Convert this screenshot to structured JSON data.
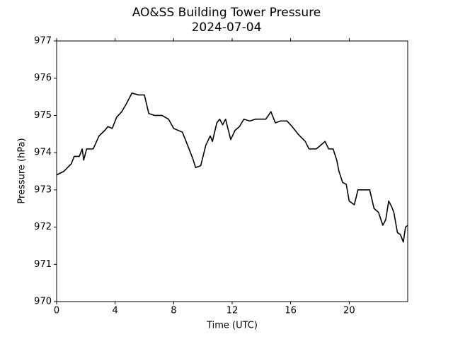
{
  "chart_data": {
    "type": "line",
    "title": "AO&SS Building Tower Pressure",
    "subtitle": "2024-07-04",
    "x_label": "Time (UTC)",
    "y_label": "Pressure (hPa)",
    "xlim": [
      0,
      24
    ],
    "xticks": [
      0,
      4,
      8,
      12,
      16,
      20
    ],
    "ylim": [
      970,
      977
    ],
    "yticks": [
      970,
      971,
      972,
      973,
      974,
      975,
      976,
      977
    ],
    "series": [
      {
        "name": "Pressure",
        "color": "#000000",
        "x": [
          0,
          0.5,
          1,
          1.2,
          1.55,
          1.75,
          1.85,
          2.05,
          2.5,
          2.9,
          3.3,
          3.5,
          3.8,
          4.1,
          4.45,
          4.75,
          5.15,
          5.6,
          6.0,
          6.3,
          6.7,
          7.2,
          7.65,
          8.0,
          8.6,
          8.95,
          9.3,
          9.5,
          9.85,
          10.2,
          10.5,
          10.65,
          10.95,
          11.15,
          11.35,
          11.55,
          11.9,
          12.2,
          12.5,
          12.8,
          13.2,
          13.6,
          14.0,
          14.3,
          14.65,
          14.95,
          15.3,
          15.75,
          16.1,
          16.5,
          17.0,
          17.25,
          17.75,
          18.05,
          18.35,
          18.6,
          18.9,
          19.15,
          19.3,
          19.55,
          19.8,
          20.0,
          20.35,
          20.6,
          20.85,
          21.15,
          21.4,
          21.7,
          22.0,
          22.3,
          22.5,
          22.7,
          22.9,
          23.05,
          23.3,
          23.5,
          23.7,
          23.85,
          24.0
        ],
        "values": [
          973.4,
          973.5,
          973.7,
          973.9,
          973.9,
          974.1,
          973.8,
          974.1,
          974.1,
          974.45,
          974.6,
          974.7,
          974.65,
          974.95,
          975.1,
          975.3,
          975.6,
          975.55,
          975.55,
          975.05,
          975.0,
          975.0,
          974.9,
          974.65,
          974.55,
          974.2,
          973.85,
          973.6,
          973.65,
          974.2,
          974.45,
          974.3,
          974.8,
          974.9,
          974.75,
          974.9,
          974.35,
          974.6,
          974.7,
          974.9,
          974.85,
          974.9,
          974.9,
          974.9,
          975.1,
          974.8,
          974.85,
          974.85,
          974.7,
          974.5,
          974.3,
          974.1,
          974.1,
          974.2,
          974.3,
          974.1,
          974.1,
          973.8,
          973.5,
          973.2,
          973.15,
          972.7,
          972.6,
          973.0,
          973.0,
          973.0,
          973.0,
          972.5,
          972.4,
          972.05,
          972.2,
          972.7,
          972.55,
          972.4,
          971.85,
          971.8,
          971.6,
          972.0,
          972.05
        ]
      }
    ]
  }
}
